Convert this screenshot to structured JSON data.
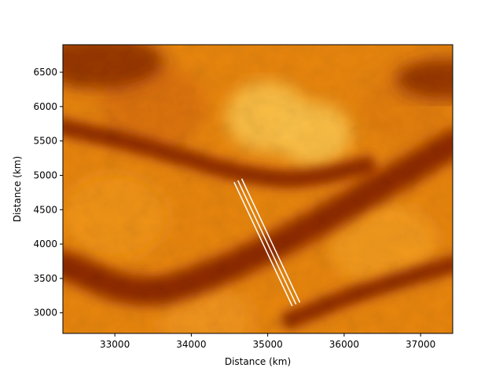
{
  "chart_data": {
    "type": "heatmap",
    "title": "",
    "xlabel": "Distance (km)",
    "ylabel": "Distance (km)",
    "xlim": [
      32320,
      37420
    ],
    "ylim": [
      2700,
      6900
    ],
    "xticks": [
      33000,
      34000,
      35000,
      36000,
      37000
    ],
    "yticks": [
      3000,
      3500,
      4000,
      4500,
      5000,
      5500,
      6000,
      6500
    ],
    "xtick_labels": [
      "33000",
      "34000",
      "35000",
      "36000",
      "37000"
    ],
    "ytick_labels": [
      "3000",
      "3500",
      "4000",
      "4500",
      "5000",
      "5500",
      "6000",
      "6500"
    ],
    "colormap": "afmhot",
    "grid": false,
    "features": {
      "dark_bands": [
        {
          "points": [
            [
              32320,
              3700
            ],
            [
              33400,
              3200
            ],
            [
              34500,
              3650
            ],
            [
              35500,
              4200
            ],
            [
              36500,
              4850
            ],
            [
              37420,
              5450
            ]
          ],
          "width_km": 300
        },
        {
          "points": [
            [
              32320,
              5700
            ],
            [
              33500,
              5400
            ],
            [
              34500,
              5050
            ],
            [
              35400,
              4900
            ],
            [
              36300,
              5150
            ]
          ],
          "width_km": 180
        },
        {
          "points": [
            [
              35300,
              2900
            ],
            [
              36200,
              3300
            ],
            [
              37420,
              3700
            ]
          ],
          "width_km": 180
        }
      ],
      "dark_corners": [
        {
          "x": 32800,
          "y": 6650,
          "r_km": 600
        },
        {
          "x": 37300,
          "y": 6400,
          "r_km": 450
        }
      ],
      "bright_spots": [
        {
          "x": 35000,
          "y": 5850,
          "r_km": 550
        },
        {
          "x": 35600,
          "y": 5600,
          "r_km": 500
        }
      ]
    },
    "transect_lines": [
      {
        "x": [
          34560,
          35320
        ],
        "y": [
          4900,
          3100
        ]
      },
      {
        "x": [
          34610,
          35370
        ],
        "y": [
          4925,
          3125
        ]
      },
      {
        "x": [
          34660,
          35420
        ],
        "y": [
          4950,
          3150
        ]
      }
    ],
    "line_color": "#ffffff"
  }
}
